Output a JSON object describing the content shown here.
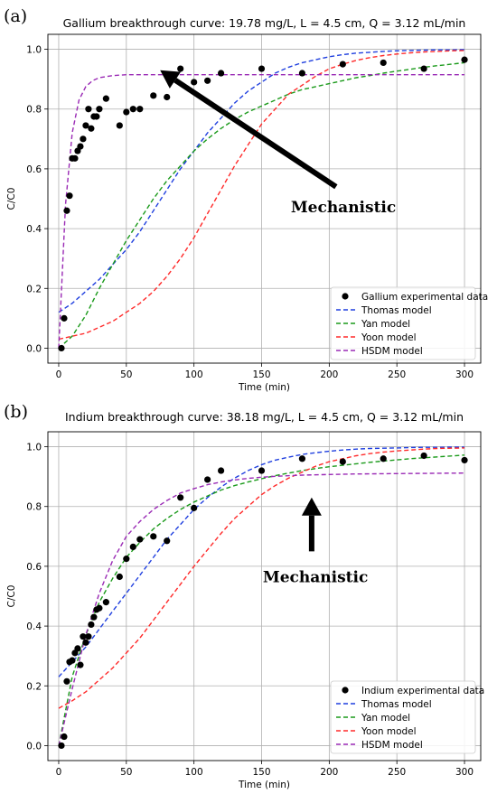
{
  "chart_data": [
    {
      "panel": "(a)",
      "type": "line",
      "title": "Gallium breakthrough curve: 19.78 mg/L, L = 4.5 cm, Q = 3.12 mL/min",
      "xlabel": "Time (min)",
      "ylabel": "C/C0",
      "xlim": [
        -8,
        312
      ],
      "ylim": [
        -0.05,
        1.05
      ],
      "xticks": [
        "0",
        "50",
        "100",
        "150",
        "200",
        "250",
        "300"
      ],
      "yticks": [
        "0.0",
        "0.2",
        "0.4",
        "0.6",
        "0.8",
        "1.0"
      ],
      "grid": true,
      "legend_position": "lower-right",
      "scatter": {
        "name": "Gallium experimental data",
        "x": [
          2,
          4,
          6,
          8,
          10,
          12,
          14,
          16,
          18,
          20,
          22,
          24,
          26,
          28,
          30,
          35,
          45,
          50,
          55,
          60,
          70,
          80,
          90,
          100,
          110,
          120,
          150,
          180,
          210,
          240,
          270,
          300
        ],
        "y": [
          0.0,
          0.1,
          0.46,
          0.51,
          0.635,
          0.635,
          0.66,
          0.675,
          0.7,
          0.745,
          0.8,
          0.735,
          0.775,
          0.775,
          0.8,
          0.835,
          0.745,
          0.79,
          0.8,
          0.8,
          0.845,
          0.84,
          0.935,
          0.89,
          0.895,
          0.92,
          0.935,
          0.92,
          0.95,
          0.955,
          0.935,
          0.965
        ]
      },
      "series": [
        {
          "name": "Thomas model",
          "color": "#1f3fdf",
          "x": [
            0,
            10,
            20,
            30,
            40,
            50,
            60,
            70,
            80,
            90,
            100,
            110,
            120,
            130,
            140,
            150,
            160,
            170,
            180,
            190,
            200,
            210,
            220,
            230,
            240,
            250,
            260,
            270,
            280,
            290,
            300
          ],
          "y": [
            0.12,
            0.15,
            0.19,
            0.23,
            0.28,
            0.33,
            0.39,
            0.46,
            0.53,
            0.6,
            0.66,
            0.72,
            0.77,
            0.82,
            0.86,
            0.89,
            0.92,
            0.94,
            0.955,
            0.965,
            0.975,
            0.982,
            0.987,
            0.99,
            0.993,
            0.995,
            0.996,
            0.997,
            0.998,
            0.998,
            0.999
          ]
        },
        {
          "name": "Yan model",
          "color": "#1a9a1a",
          "x": [
            0,
            10,
            20,
            30,
            40,
            50,
            60,
            70,
            80,
            90,
            100,
            110,
            120,
            130,
            140,
            150,
            160,
            170,
            180,
            190,
            200,
            210,
            220,
            230,
            240,
            250,
            260,
            270,
            280,
            290,
            300
          ],
          "y": [
            0.0,
            0.04,
            0.11,
            0.2,
            0.28,
            0.36,
            0.43,
            0.5,
            0.56,
            0.61,
            0.66,
            0.7,
            0.735,
            0.765,
            0.79,
            0.81,
            0.83,
            0.85,
            0.865,
            0.875,
            0.885,
            0.895,
            0.905,
            0.912,
            0.92,
            0.927,
            0.933,
            0.94,
            0.945,
            0.95,
            0.955
          ]
        },
        {
          "name": "Yoon model",
          "color": "#ff2a2a",
          "x": [
            0,
            10,
            20,
            30,
            40,
            50,
            60,
            70,
            80,
            90,
            100,
            110,
            120,
            130,
            140,
            150,
            160,
            170,
            180,
            190,
            200,
            210,
            220,
            230,
            240,
            250,
            260,
            270,
            280,
            290,
            300
          ],
          "y": [
            0.03,
            0.04,
            0.05,
            0.07,
            0.09,
            0.12,
            0.15,
            0.19,
            0.24,
            0.3,
            0.37,
            0.45,
            0.53,
            0.61,
            0.68,
            0.75,
            0.8,
            0.85,
            0.88,
            0.91,
            0.935,
            0.95,
            0.963,
            0.972,
            0.979,
            0.984,
            0.988,
            0.991,
            0.993,
            0.995,
            0.996
          ]
        },
        {
          "name": "HSDM model",
          "color": "#9a2ab5",
          "x": [
            0,
            5,
            10,
            15,
            20,
            25,
            30,
            40,
            50,
            60,
            80,
            100,
            150,
            200,
            250,
            300
          ],
          "y": [
            0.0,
            0.48,
            0.72,
            0.83,
            0.875,
            0.895,
            0.905,
            0.912,
            0.915,
            0.915,
            0.915,
            0.915,
            0.915,
            0.915,
            0.915,
            0.915
          ]
        }
      ],
      "annotation": {
        "text": "Mechanistic",
        "arrow_from": [
          205,
          0.54
        ],
        "arrow_to": [
          75,
          0.93
        ]
      }
    },
    {
      "panel": "(b)",
      "type": "line",
      "title": "Indium breakthrough curve: 38.18 mg/L, L = 4.5 cm, Q = 3.12 mL/min",
      "xlabel": "Time (min)",
      "ylabel": "C/C0",
      "xlim": [
        -8,
        312
      ],
      "ylim": [
        -0.05,
        1.05
      ],
      "xticks": [
        "0",
        "50",
        "100",
        "150",
        "200",
        "250",
        "300"
      ],
      "yticks": [
        "0.0",
        "0.2",
        "0.4",
        "0.6",
        "0.8",
        "1.0"
      ],
      "grid": true,
      "legend_position": "lower-right",
      "scatter": {
        "name": "Indium experimental data",
        "x": [
          2,
          4,
          6,
          8,
          10,
          12,
          14,
          16,
          18,
          20,
          22,
          24,
          26,
          28,
          30,
          35,
          45,
          50,
          55,
          60,
          70,
          80,
          90,
          100,
          110,
          120,
          150,
          180,
          210,
          240,
          270,
          300
        ],
        "y": [
          0.0,
          0.03,
          0.215,
          0.28,
          0.285,
          0.31,
          0.325,
          0.27,
          0.365,
          0.345,
          0.365,
          0.405,
          0.43,
          0.455,
          0.46,
          0.48,
          0.565,
          0.625,
          0.665,
          0.69,
          0.7,
          0.685,
          0.83,
          0.795,
          0.89,
          0.92,
          0.92,
          0.96,
          0.95,
          0.96,
          0.97,
          0.955
        ]
      },
      "series": [
        {
          "name": "Thomas model",
          "color": "#1f3fdf",
          "x": [
            0,
            10,
            20,
            30,
            40,
            50,
            60,
            70,
            80,
            90,
            100,
            110,
            120,
            130,
            140,
            150,
            160,
            170,
            180,
            190,
            200,
            210,
            220,
            230,
            240,
            250,
            260,
            270,
            280,
            290,
            300
          ],
          "y": [
            0.23,
            0.28,
            0.33,
            0.39,
            0.45,
            0.51,
            0.57,
            0.63,
            0.69,
            0.74,
            0.79,
            0.83,
            0.865,
            0.895,
            0.92,
            0.94,
            0.955,
            0.965,
            0.974,
            0.98,
            0.985,
            0.989,
            0.992,
            0.994,
            0.995,
            0.996,
            0.997,
            0.998,
            0.998,
            0.999,
            0.999
          ]
        },
        {
          "name": "Yan model",
          "color": "#1a9a1a",
          "x": [
            0,
            10,
            20,
            30,
            40,
            50,
            60,
            70,
            80,
            90,
            100,
            110,
            120,
            130,
            140,
            150,
            160,
            170,
            180,
            190,
            200,
            210,
            220,
            230,
            240,
            250,
            260,
            270,
            280,
            290,
            300
          ],
          "y": [
            0.0,
            0.23,
            0.37,
            0.48,
            0.56,
            0.63,
            0.68,
            0.725,
            0.76,
            0.79,
            0.815,
            0.835,
            0.855,
            0.87,
            0.882,
            0.893,
            0.903,
            0.912,
            0.92,
            0.927,
            0.933,
            0.938,
            0.943,
            0.948,
            0.952,
            0.956,
            0.96,
            0.963,
            0.966,
            0.969,
            0.972
          ]
        },
        {
          "name": "Yoon model",
          "color": "#ff2a2a",
          "x": [
            0,
            10,
            20,
            30,
            40,
            50,
            60,
            70,
            80,
            90,
            100,
            110,
            120,
            130,
            140,
            150,
            160,
            170,
            180,
            190,
            200,
            210,
            220,
            230,
            240,
            250,
            260,
            270,
            280,
            290,
            300
          ],
          "y": [
            0.125,
            0.15,
            0.18,
            0.22,
            0.26,
            0.31,
            0.36,
            0.42,
            0.48,
            0.54,
            0.6,
            0.655,
            0.71,
            0.76,
            0.8,
            0.84,
            0.87,
            0.895,
            0.915,
            0.935,
            0.95,
            0.96,
            0.97,
            0.977,
            0.982,
            0.986,
            0.989,
            0.992,
            0.994,
            0.995,
            0.996
          ]
        },
        {
          "name": "HSDM model",
          "color": "#9a2ab5",
          "x": [
            0,
            10,
            20,
            30,
            40,
            50,
            60,
            70,
            80,
            90,
            100,
            110,
            120,
            130,
            140,
            150,
            160,
            180,
            200,
            220,
            250,
            300
          ],
          "y": [
            0.0,
            0.19,
            0.37,
            0.51,
            0.62,
            0.7,
            0.75,
            0.79,
            0.82,
            0.845,
            0.86,
            0.873,
            0.882,
            0.889,
            0.894,
            0.898,
            0.901,
            0.905,
            0.907,
            0.909,
            0.91,
            0.912
          ]
        }
      ],
      "annotation": {
        "text": "Mechanistic",
        "arrow_from": [
          187,
          0.65
        ],
        "arrow_to": [
          187,
          0.83
        ]
      }
    }
  ]
}
